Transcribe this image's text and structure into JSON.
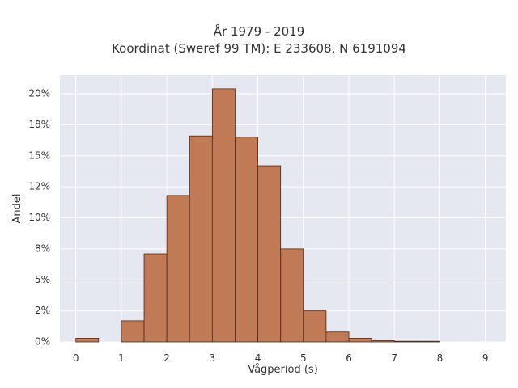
{
  "chart_data": {
    "type": "bar",
    "title": "År 1979 - 2019",
    "subtitle": "Koordinat (Sweref 99 TM): E 233608, N 6191094",
    "xlabel": "Vågperiod (s)",
    "ylabel": "Andel",
    "xlim": [
      -0.35,
      9.45
    ],
    "ylim": [
      0,
      21.5
    ],
    "xticks": [
      0,
      1,
      2,
      3,
      4,
      5,
      6,
      7,
      8,
      9
    ],
    "xtick_labels": [
      "0",
      "1",
      "2",
      "3",
      "4",
      "5",
      "6",
      "7",
      "8",
      "9"
    ],
    "yticks": [
      0,
      2.5,
      5,
      7.5,
      10,
      12.5,
      15,
      17.5,
      20
    ],
    "ytick_labels": [
      "0%",
      "2%",
      "5%",
      "8%",
      "10%",
      "12%",
      "15%",
      "18%",
      "20%"
    ],
    "bin_width": 0.5,
    "bins": [
      {
        "start": 0.0,
        "value": 0.3
      },
      {
        "start": 0.5,
        "value": 0.0
      },
      {
        "start": 1.0,
        "value": 1.7
      },
      {
        "start": 1.5,
        "value": 7.1
      },
      {
        "start": 2.0,
        "value": 11.8
      },
      {
        "start": 2.5,
        "value": 16.6
      },
      {
        "start": 3.0,
        "value": 20.4
      },
      {
        "start": 3.5,
        "value": 16.5
      },
      {
        "start": 4.0,
        "value": 14.2
      },
      {
        "start": 4.5,
        "value": 7.5
      },
      {
        "start": 5.0,
        "value": 2.5
      },
      {
        "start": 5.5,
        "value": 0.8
      },
      {
        "start": 6.0,
        "value": 0.3
      },
      {
        "start": 6.5,
        "value": 0.1
      },
      {
        "start": 7.0,
        "value": 0.05
      },
      {
        "start": 7.5,
        "value": 0.05
      }
    ],
    "grid": true,
    "colors": {
      "bar_fill": "#c07a55",
      "bar_edge": "#4a2a1a",
      "plot_background": "#e5e7f1",
      "grid": "#ffffff"
    }
  }
}
